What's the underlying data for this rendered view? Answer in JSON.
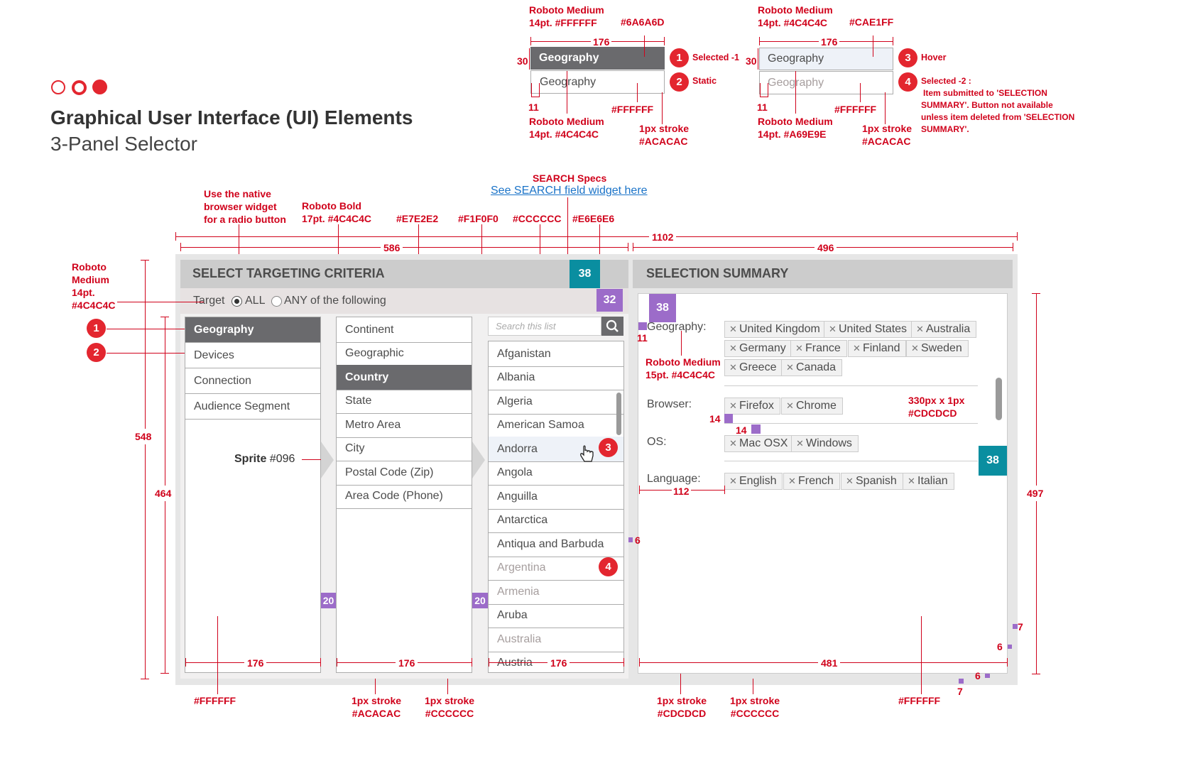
{
  "header": {
    "title": "Graphical User Interface (UI) Elements",
    "subtitle": "3-Panel Selector"
  },
  "specs": {
    "left": {
      "top1": "Roboto Medium",
      "top2": "14pt. #FFFFFF",
      "color": "#6A6A6D",
      "width": "176",
      "height": "30",
      "item_selected": "Geography",
      "item_static": "Geography",
      "n1": "1",
      "n1_label": "Selected -1",
      "n2": "2",
      "n2_label": "Static",
      "offset": "11",
      "bottom1": "Roboto Medium",
      "bottom2": "14pt. #4C4C4C",
      "white": "#FFFFFF",
      "stroke1": "1px stroke",
      "stroke2": "#ACACAC"
    },
    "right": {
      "top1": "Roboto Medium",
      "top2": "14pt. #4C4C4C",
      "color": "#CAE1FF",
      "width": "176",
      "height": "30",
      "item_hover": "Geography",
      "item_sel2": "Geography",
      "n3": "3",
      "n3_label": "Hover",
      "n4": "4",
      "n4_label": "Selected -2 :",
      "n4_text1": "Item submitted to 'SELECTION",
      "n4_text2": "SUMMARY'. Button not available",
      "n4_text3": "unless item deleted from 'SELECTION",
      "n4_text4": "SUMMARY'.",
      "offset": "11",
      "bottom1": "Roboto Medium",
      "bottom2": "14pt. #A69E9E",
      "white": "#FFFFFF",
      "stroke1": "1px stroke",
      "stroke2": "#ACACAC"
    }
  },
  "annotations": {
    "search_specs": "SEARCH Specs",
    "search_link": "See SEARCH field widget here",
    "radio1": "Use the native",
    "radio2": "browser widget",
    "radio3": "for a radio button",
    "bold1": "Roboto Bold",
    "bold2": "17pt. #4C4C4C",
    "c_e7": "#E7E2E2",
    "c_f1": "#F1F0F0",
    "c_cc": "#CCCCCC",
    "c_e6": "#E6E6E6",
    "w1102": "1102",
    "w586": "586",
    "w496": "496",
    "rm1": "Roboto",
    "rm2": "Medium",
    "rm3": "14pt.",
    "rm4": "#4C4C4C",
    "h548": "548",
    "h464": "464",
    "h497": "497",
    "sprite": "Sprite",
    "sprite_num": "#096",
    "b1": "1",
    "b2": "2",
    "b3": "3",
    "b4": "4",
    "w176a": "176",
    "w176b": "176",
    "w176c": "176",
    "w481": "481",
    "ff_left": "#FFFFFF",
    "s1a": "1px stroke",
    "s1b": "#ACACAC",
    "s2a": "1px stroke",
    "s2b": "#CCCCCC",
    "s3a": "1px stroke",
    "s3b": "#CDCDCD",
    "s4a": "1px stroke",
    "s4b": "#CCCCCC",
    "ff_right": "#FFFFFF",
    "geo_font1": "Roboto Medium",
    "geo_font2": "15pt. #4C4C4C",
    "rule1": "330px x 1px",
    "rule2": "#CDCDCD",
    "n11": "11",
    "n14a": "14",
    "n14b": "14",
    "n112": "112",
    "n6a": "6",
    "n6b": "6",
    "n6c": "6",
    "n7a": "7",
    "n7b": "7",
    "sq38a": "38",
    "sq38b": "38",
    "sq38c": "38",
    "sq32": "32",
    "sq20a": "20",
    "sq20b": "20"
  },
  "panel_left": {
    "title": "SELECT TARGETING CRITERIA",
    "target_label": "Target",
    "radio_all": "ALL",
    "radio_any": "ANY of the following",
    "list1": [
      "Geography",
      "Devices",
      "Connection",
      "Audience Segment"
    ],
    "list2": [
      "Continent",
      "Geographic",
      "Country",
      "State",
      "Metro Area",
      "City",
      "Postal Code (Zip)",
      "Area Code (Phone)"
    ],
    "search_placeholder": "Search this list",
    "list3": [
      "Afganistan",
      "Albania",
      "Algeria",
      "American Samoa",
      "Andorra",
      "Angola",
      "Anguilla",
      "Antarctica",
      "Antiqua and Barbuda",
      "Argentina",
      "Armenia",
      "Aruba",
      "Australia",
      "Austria"
    ]
  },
  "panel_right": {
    "title": "SELECTION SUMMARY",
    "geo_label": "Geography:",
    "geo": [
      "United Kingdom",
      "United States",
      "Australia",
      "Germany",
      "France",
      "Finland",
      "Sweden",
      "Greece",
      "Canada"
    ],
    "browser_label": "Browser:",
    "browser": [
      "Firefox",
      "Chrome"
    ],
    "os_label": "OS:",
    "os": [
      "Mac OSX",
      "Windows"
    ],
    "lang_label": "Language:",
    "lang": [
      "English",
      "French",
      "Spanish",
      "Italian"
    ]
  }
}
